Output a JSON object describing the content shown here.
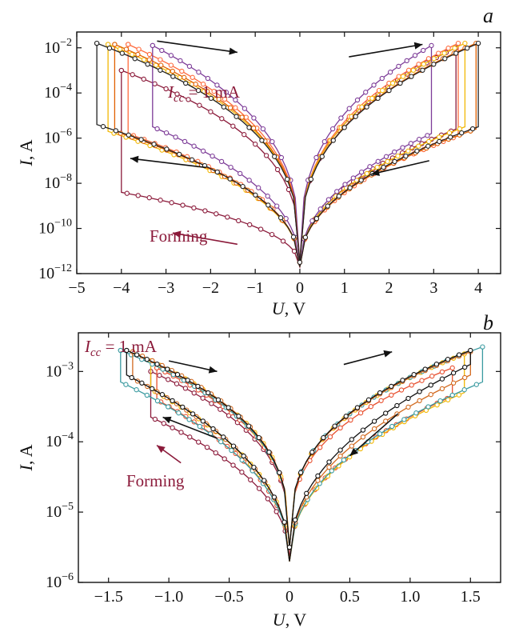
{
  "chart_data": [
    {
      "panel": "a",
      "type": "line",
      "xlabel": "U, V",
      "ylabel": "I, A",
      "xlim": [
        -5,
        4.5
      ],
      "ylim": [
        -12,
        -1.3
      ],
      "yscale": "log",
      "xticks": [
        "−5",
        "−4",
        "−3",
        "−2",
        "−1",
        "0",
        "1",
        "2",
        "3",
        "4"
      ],
      "yticks": [
        "10−12",
        "10−10",
        "10−8",
        "10−6",
        "10−4",
        "10−2"
      ],
      "annotations": [
        {
          "text": "I",
          "sub": "cc",
          "rest": " = 1 mA",
          "color": "#8b1a3a"
        },
        {
          "text": "Forming",
          "color": "#8b1a3a"
        }
      ],
      "series": [
        {
          "color": "#8b1a3a",
          "vneg": -4.0,
          "vpos": 3.5,
          "ilrs_neg": -3.0,
          "ilrs_pos": -2.0,
          "ihrs_neg": -8.4,
          "ihrs_pos": -5.6,
          "forming": true
        },
        {
          "color": "#ff6a3d",
          "vneg": -3.85,
          "vpos": 3.55,
          "ilrs_neg": -1.85,
          "ilrs_pos": -1.8,
          "ihrs_neg": -5.8,
          "ihrs_pos": -5.9
        },
        {
          "color": "#f2b705",
          "vneg": -4.3,
          "vpos": 3.7,
          "ilrs_neg": -1.85,
          "ilrs_pos": -1.8,
          "ihrs_neg": -5.7,
          "ihrs_pos": -5.5
        },
        {
          "color": "#7d3c98",
          "vneg": -3.3,
          "vpos": 2.95,
          "ilrs_neg": -1.9,
          "ilrs_pos": -1.9,
          "ihrs_neg": -5.5,
          "ihrs_pos": -5.8
        },
        {
          "color": "#e06000",
          "vneg": -4.15,
          "vpos": 3.95,
          "ilrs_neg": -1.85,
          "ilrs_pos": -1.8,
          "ihrs_neg": -5.7,
          "ihrs_pos": -5.6
        },
        {
          "color": "#222222",
          "vneg": -4.55,
          "vpos": 4.0,
          "ilrs_neg": -1.8,
          "ilrs_pos": -1.8,
          "ihrs_neg": -5.4,
          "ihrs_pos": -5.5
        }
      ]
    },
    {
      "panel": "b",
      "type": "line",
      "xlabel": "U, V",
      "ylabel": "I, A",
      "xlim": [
        -1.75,
        1.75
      ],
      "ylim": [
        -6,
        -2.45
      ],
      "yscale": "log",
      "xticks": [
        "−1.5",
        "−1.0",
        "−0.5",
        "0",
        "0.5",
        "1.0",
        "1.5"
      ],
      "yticks": [
        "10−6",
        "10−5",
        "10−4",
        "10−3"
      ],
      "annotations": [
        {
          "text": "I",
          "sub": "cc",
          "rest": " = 1 mA",
          "color": "#8b1a3a"
        },
        {
          "text": "Forming",
          "color": "#8b1a3a"
        }
      ],
      "series": [
        {
          "color": "#8b1a3a",
          "vneg": -1.15,
          "vpos": 0.0,
          "ilrs_neg": -3.0,
          "ilrs_pos": -3.0,
          "ihrs_neg": -3.65,
          "ihrs_pos": -3.0,
          "forming": true
        },
        {
          "color": "#e8502f",
          "vneg": -1.1,
          "vpos": 1.35,
          "ilrs_neg": -2.95,
          "ilrs_pos": -2.95,
          "ihrs_neg": -3.4,
          "ihrs_pos": -3.35
        },
        {
          "color": "#f2b705",
          "vneg": -1.15,
          "vpos": 1.45,
          "ilrs_neg": -2.85,
          "ilrs_pos": -2.75,
          "ihrs_neg": -3.25,
          "ihrs_pos": -3.3
        },
        {
          "color": "#3a9aa0",
          "vneg": -1.4,
          "vpos": 1.6,
          "ilrs_neg": -2.7,
          "ilrs_pos": -2.65,
          "ihrs_neg": -3.15,
          "ihrs_pos": -3.15
        },
        {
          "color": "#d2691e",
          "vneg": -1.3,
          "vpos": 1.5,
          "ilrs_neg": -2.72,
          "ilrs_pos": -2.72,
          "ihrs_neg": -3.1,
          "ihrs_pos": -3.05
        },
        {
          "color": "#111111",
          "vneg": -1.35,
          "vpos": 1.5,
          "ilrs_neg": -2.7,
          "ilrs_pos": -2.7,
          "ihrs_neg": -3.05,
          "ihrs_pos": -2.9
        }
      ]
    }
  ]
}
